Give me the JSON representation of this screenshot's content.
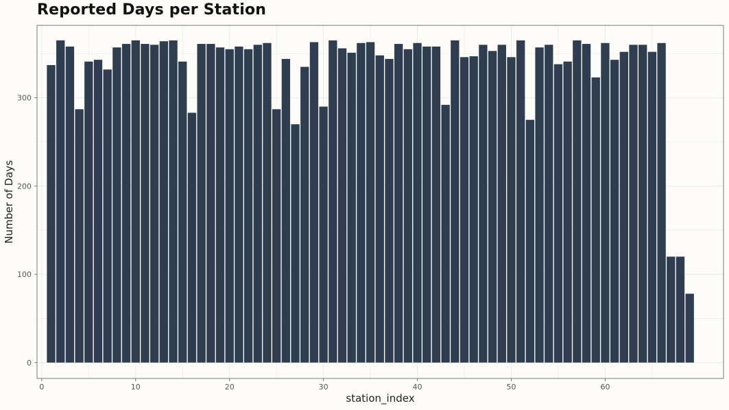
{
  "chart_data": {
    "type": "bar",
    "title": "Reported Days per Station",
    "xlabel": "station_index",
    "ylabel": "Number of Days",
    "x_ticks": [
      0,
      10,
      20,
      30,
      40,
      50,
      60
    ],
    "y_ticks": [
      0,
      100,
      200,
      300
    ],
    "xlim": [
      -0.5,
      72.6
    ],
    "ylim": [
      -18,
      382
    ],
    "grid": true,
    "bar_color": "#2e3d50",
    "categories": [
      1,
      2,
      3,
      4,
      5,
      6,
      7,
      8,
      9,
      10,
      11,
      12,
      13,
      14,
      15,
      16,
      17,
      18,
      19,
      20,
      21,
      22,
      23,
      24,
      25,
      26,
      27,
      28,
      29,
      30,
      31,
      32,
      33,
      34,
      35,
      36,
      37,
      38,
      39,
      40,
      41,
      42,
      43,
      44,
      45,
      46,
      47,
      48,
      49,
      50,
      51,
      52,
      53,
      54,
      55,
      56,
      57,
      58,
      59,
      60,
      61,
      62,
      63,
      64,
      65,
      66,
      67,
      68,
      69
    ],
    "values": [
      337,
      365,
      358,
      287,
      341,
      343,
      332,
      357,
      361,
      365,
      361,
      360,
      364,
      365,
      341,
      283,
      361,
      361,
      357,
      355,
      358,
      355,
      360,
      362,
      287,
      344,
      270,
      335,
      363,
      290,
      365,
      356,
      351,
      362,
      363,
      348,
      344,
      361,
      355,
      362,
      358,
      358,
      292,
      365,
      346,
      347,
      360,
      353,
      360,
      346,
      365,
      275,
      357,
      360,
      338,
      341,
      365,
      361,
      323,
      362,
      343,
      352,
      360,
      360,
      352,
      362,
      120,
      120,
      78
    ]
  },
  "colors": {
    "background": "#fdfcf8",
    "bar": "#2e3d50",
    "grid": "#e9e9e6",
    "frame": "#777777"
  }
}
